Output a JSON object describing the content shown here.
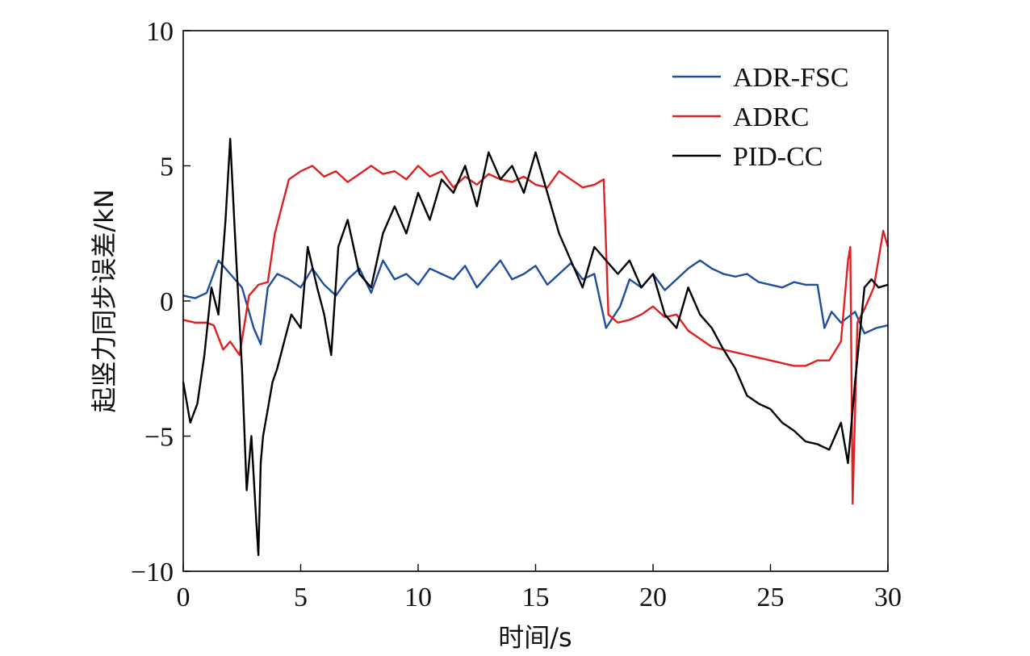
{
  "chart_data": {
    "type": "line",
    "xlabel": "时间/s",
    "ylabel": "起竖力同步误差/kN",
    "xlim": [
      0,
      30
    ],
    "ylim": [
      -10,
      10
    ],
    "x_ticks": [
      "0",
      "5",
      "10",
      "15",
      "20",
      "25",
      "30"
    ],
    "y_ticks": [
      "10",
      "5",
      "0",
      "−5",
      "−10"
    ],
    "grid": false,
    "legend_position": "top-right",
    "series": [
      {
        "name": "ADR-FSC",
        "color": "#1f4e9e",
        "x": [
          0,
          0.5,
          1.0,
          1.5,
          2.0,
          2.5,
          3.0,
          3.3,
          3.6,
          4.0,
          4.5,
          5.0,
          5.5,
          6.0,
          6.5,
          7.0,
          7.5,
          8.0,
          8.5,
          9.0,
          9.5,
          10.0,
          10.5,
          11.0,
          11.5,
          12.0,
          12.5,
          13.0,
          13.5,
          14.0,
          14.5,
          15.0,
          15.5,
          16.0,
          16.5,
          17.0,
          17.5,
          18.0,
          18.3,
          18.6,
          19.0,
          19.5,
          20.0,
          20.5,
          21.0,
          21.5,
          22.0,
          22.5,
          23.0,
          23.5,
          24.0,
          24.5,
          25.0,
          25.5,
          26.0,
          26.5,
          27.0,
          27.3,
          27.6,
          28.0,
          28.3,
          28.6,
          29.0,
          29.5,
          30.0
        ],
        "y": [
          0.2,
          0.1,
          0.3,
          1.5,
          1.0,
          0.5,
          -1.0,
          -1.6,
          0.5,
          1.0,
          0.8,
          0.5,
          1.2,
          0.6,
          0.2,
          0.8,
          1.2,
          0.3,
          1.5,
          0.8,
          1.0,
          0.6,
          1.2,
          1.0,
          0.8,
          1.3,
          0.5,
          1.0,
          1.5,
          0.8,
          1.0,
          1.3,
          0.6,
          1.0,
          1.4,
          0.8,
          1.0,
          -1.0,
          -0.6,
          -0.2,
          0.8,
          0.5,
          1.0,
          0.4,
          0.8,
          1.2,
          1.5,
          1.2,
          1.0,
          0.9,
          1.0,
          0.7,
          0.6,
          0.5,
          0.7,
          0.6,
          0.6,
          -1.0,
          -0.4,
          -0.8,
          -0.6,
          -0.4,
          -1.2,
          -1.0,
          -0.9
        ]
      },
      {
        "name": "ADRC",
        "color": "#e02020",
        "x": [
          0,
          0.5,
          1.0,
          1.3,
          1.7,
          2.0,
          2.4,
          2.8,
          3.2,
          3.6,
          3.9,
          4.5,
          5.0,
          5.5,
          6.0,
          6.5,
          7.0,
          7.5,
          8.0,
          8.5,
          9.0,
          9.5,
          10.0,
          10.5,
          11.0,
          11.5,
          12.0,
          12.5,
          13.0,
          13.5,
          14.0,
          14.5,
          15.0,
          15.5,
          16.0,
          16.5,
          17.0,
          17.5,
          17.9,
          18.1,
          18.5,
          19.0,
          19.5,
          20.0,
          20.5,
          21.0,
          21.5,
          22.0,
          22.5,
          23.0,
          23.5,
          24.0,
          24.5,
          25.0,
          25.5,
          26.0,
          26.5,
          27.0,
          27.5,
          28.0,
          28.3,
          28.4,
          28.5,
          28.7,
          29.0,
          29.4,
          29.8,
          30.0
        ],
        "y": [
          -0.7,
          -0.8,
          -0.8,
          -0.9,
          -1.8,
          -1.5,
          -2.0,
          0.2,
          0.6,
          0.7,
          2.5,
          4.5,
          4.8,
          5.0,
          4.6,
          4.8,
          4.4,
          4.7,
          5.0,
          4.7,
          4.8,
          4.5,
          5.0,
          4.6,
          4.8,
          4.2,
          4.6,
          4.3,
          4.7,
          4.5,
          4.4,
          4.6,
          4.3,
          4.2,
          4.8,
          4.5,
          4.2,
          4.3,
          4.5,
          -0.5,
          -0.8,
          -0.7,
          -0.5,
          -0.2,
          -0.6,
          -0.5,
          -1.1,
          -1.4,
          -1.7,
          -1.8,
          -1.9,
          -2.0,
          -2.1,
          -2.2,
          -2.3,
          -2.4,
          -2.4,
          -2.2,
          -2.2,
          -1.5,
          1.5,
          2.0,
          -7.5,
          -0.8,
          -0.3,
          0.5,
          2.6,
          2.0
        ]
      },
      {
        "name": "PID-CC",
        "color": "#000000",
        "x": [
          0,
          0.3,
          0.6,
          0.9,
          1.2,
          1.5,
          1.8,
          2.0,
          2.2,
          2.5,
          2.7,
          2.9,
          3.1,
          3.2,
          3.3,
          3.4,
          3.6,
          3.8,
          4.0,
          4.3,
          4.6,
          5.0,
          5.3,
          5.7,
          6.0,
          6.3,
          6.6,
          7.0,
          7.5,
          8.0,
          8.5,
          9.0,
          9.5,
          10.0,
          10.5,
          11.0,
          11.5,
          12.0,
          12.5,
          13.0,
          13.5,
          14.0,
          14.5,
          15.0,
          15.5,
          16.0,
          16.5,
          17.0,
          17.5,
          18.0,
          18.5,
          19.0,
          19.5,
          20.0,
          20.5,
          21.0,
          21.5,
          22.0,
          22.5,
          23.0,
          23.5,
          24.0,
          24.5,
          25.0,
          25.5,
          26.0,
          26.5,
          27.0,
          27.5,
          28.0,
          28.3,
          28.6,
          29.0,
          29.3,
          29.6,
          30.0
        ],
        "y": [
          -3.0,
          -4.5,
          -3.8,
          -2.0,
          0.5,
          -0.5,
          3.0,
          6.0,
          2.5,
          -2.5,
          -7.0,
          -5.0,
          -8.0,
          -9.4,
          -6.0,
          -5.0,
          -4.0,
          -3.0,
          -2.5,
          -1.5,
          -0.5,
          -1.0,
          2.0,
          0.5,
          -0.5,
          -2.0,
          2.0,
          3.0,
          1.0,
          0.5,
          2.5,
          3.5,
          2.5,
          4.0,
          3.0,
          4.5,
          4.0,
          5.0,
          3.5,
          5.5,
          4.5,
          5.0,
          4.0,
          5.5,
          4.0,
          2.5,
          1.5,
          0.5,
          2.0,
          1.5,
          1.0,
          1.5,
          0.5,
          1.0,
          -0.5,
          -1.0,
          0.5,
          -0.5,
          -1.0,
          -1.8,
          -2.5,
          -3.5,
          -3.8,
          -4.0,
          -4.5,
          -4.8,
          -5.2,
          -5.3,
          -5.5,
          -4.5,
          -6.0,
          -3.0,
          0.5,
          0.8,
          0.5,
          0.6
        ]
      }
    ]
  }
}
